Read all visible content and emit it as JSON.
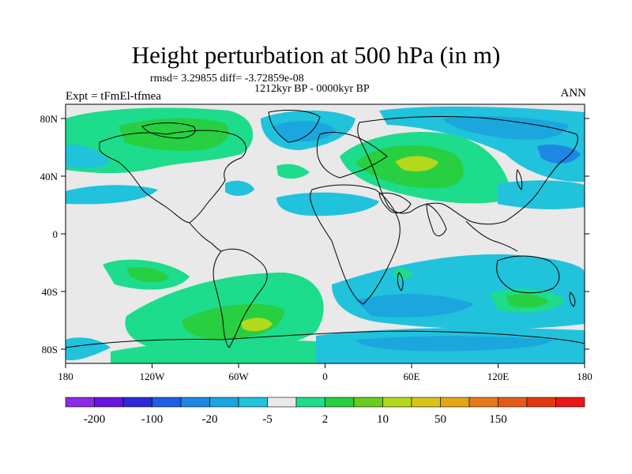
{
  "title": "Height perturbation at 500 hPa (in m)",
  "stats": "rmsd= 3.29855 diff= -3.72859e-08",
  "period": "1212kyr BP - 0000kyr BP",
  "experiment": "Expt = tFmEl-tfmea",
  "season": "ANN",
  "lat_ticks": [
    "80N",
    "40N",
    "0",
    "40S",
    "80S"
  ],
  "lon_ticks": [
    "180",
    "120W",
    "60W",
    "0",
    "60E",
    "120E",
    "180"
  ],
  "colorbar": {
    "colors": [
      "#8c2ce6",
      "#6a14e0",
      "#2d29d6",
      "#1d5ee6",
      "#1e87e3",
      "#1ba6dd",
      "#21c2dc",
      "#e9e9e9",
      "#1ddc8c",
      "#27cf41",
      "#6acc1e",
      "#b4d81b",
      "#d8c417",
      "#e3a714",
      "#e6791b",
      "#e45b17",
      "#e3390f",
      "#ed1515"
    ],
    "labels": [
      "-200",
      "-100",
      "-20",
      "-5",
      "2",
      "10",
      "50",
      "150"
    ]
  },
  "colors": {
    "land_outline": "#000000",
    "neutral": "#e9e9e9",
    "cyan": "#21c2dc",
    "light_blue": "#1ba6dd",
    "blue": "#1e87e3",
    "light_green": "#1ddc8c",
    "green": "#27cf41",
    "yellow_green": "#b4d81b"
  }
}
